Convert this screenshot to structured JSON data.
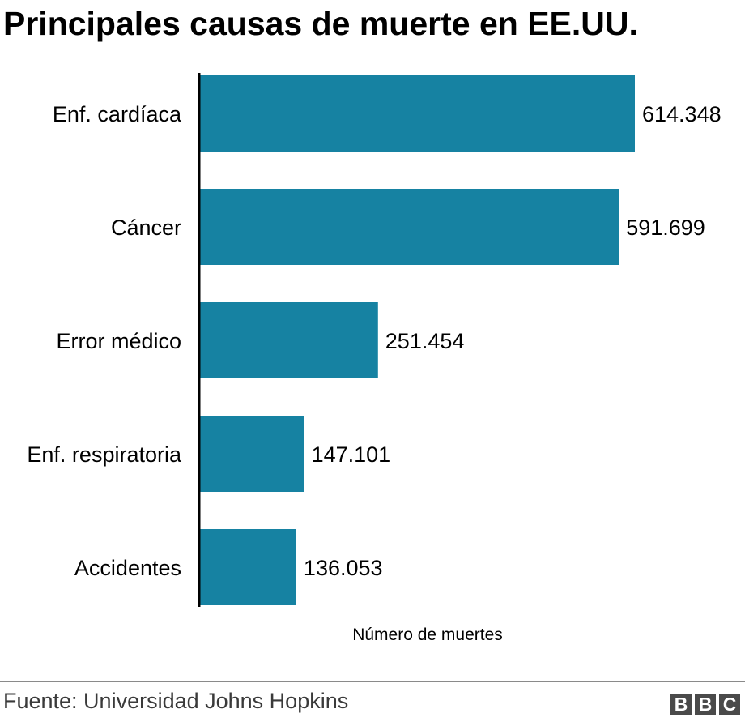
{
  "colors": {
    "bar": "#1682a2",
    "axis": "#000000",
    "text": "#000000",
    "source_text": "#3a3a3a",
    "logo_bg": "#4a4a4a"
  },
  "chart_data": {
    "type": "bar",
    "orientation": "horizontal",
    "title": "Principales causas de muerte en EE.UU.",
    "xlabel": "Número de muertes",
    "ylabel": "",
    "categories": [
      "Enf. cardíaca",
      "Cáncer",
      "Error médico",
      "Enf. respiratoria",
      "Accidentes"
    ],
    "values": [
      614348,
      591699,
      251454,
      147101,
      136053
    ],
    "value_labels": [
      "614.348",
      "591.699",
      "251.454",
      "147.101",
      "136.053"
    ],
    "xlim": [
      0,
      614348
    ],
    "grid": false,
    "legend": "none"
  },
  "footer": {
    "source": "Fuente: Universidad Johns Hopkins",
    "logo_letters": [
      "B",
      "B",
      "C"
    ]
  }
}
